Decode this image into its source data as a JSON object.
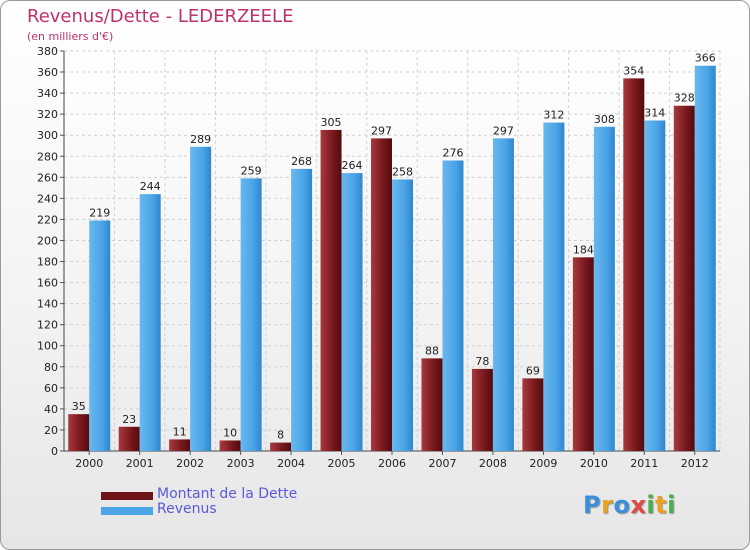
{
  "chart_data": {
    "type": "bar",
    "title": "Revenus/Dette - LEDERZEELE",
    "subtitle": "(en milliers d'€)",
    "categories": [
      "2000",
      "2001",
      "2002",
      "2003",
      "2004",
      "2005",
      "2006",
      "2007",
      "2008",
      "2009",
      "2010",
      "2011",
      "2012"
    ],
    "series": [
      {
        "name": "Montant de la Dette",
        "color": "#7a1a1e",
        "values": [
          35,
          23,
          11,
          10,
          8,
          305,
          297,
          88,
          78,
          69,
          184,
          354,
          328
        ]
      },
      {
        "name": "Revenus",
        "color": "#4aa4e6",
        "values": [
          219,
          244,
          289,
          259,
          268,
          264,
          258,
          276,
          297,
          312,
          308,
          314,
          366
        ]
      }
    ],
    "ylim": [
      0,
      380
    ],
    "ytick_step": 20,
    "grid": true,
    "legend_position": "bottom-left"
  },
  "logo": {
    "letters": [
      {
        "ch": "P",
        "color": "#3a8fd8"
      },
      {
        "ch": "r",
        "color": "#e9a21e"
      },
      {
        "ch": "o",
        "color": "#3a8fd8"
      },
      {
        "ch": "x",
        "color": "#e04848"
      },
      {
        "ch": "i",
        "color": "#4ab04a"
      },
      {
        "ch": "t",
        "color": "#e9a21e"
      },
      {
        "ch": "i",
        "color": "#4ab04a"
      }
    ]
  }
}
